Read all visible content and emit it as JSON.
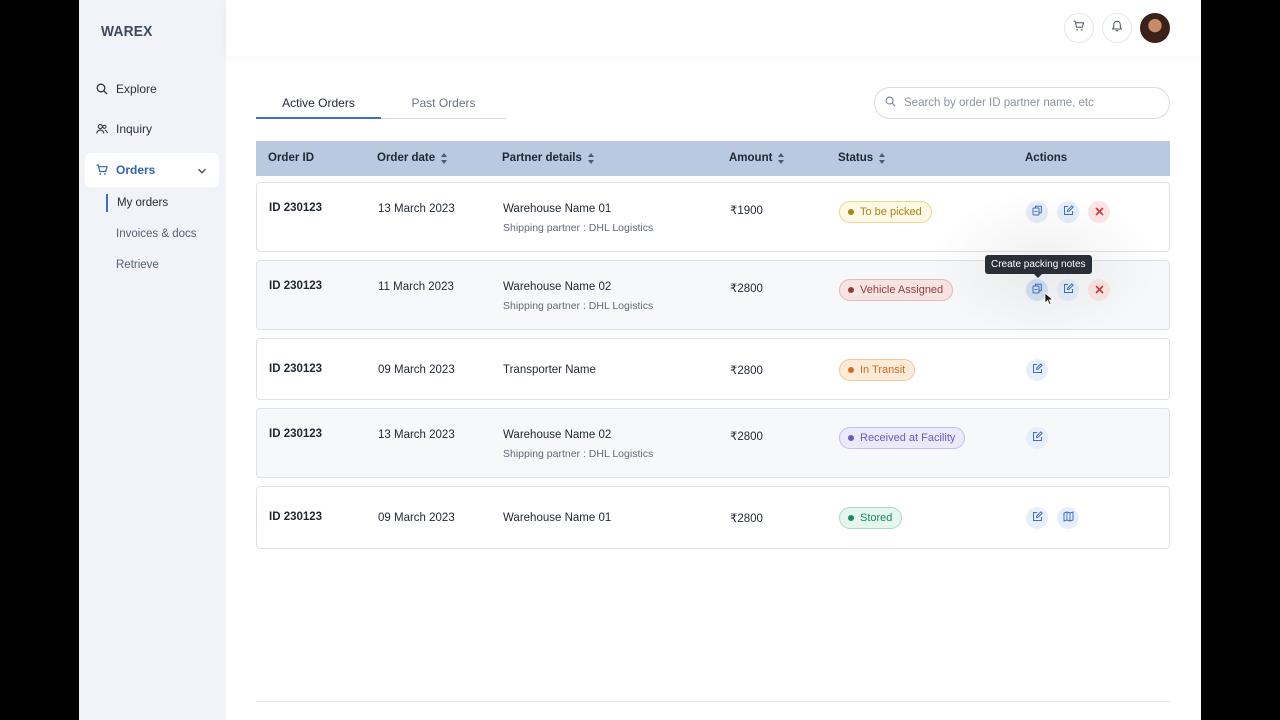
{
  "app": {
    "logo": "WAREX"
  },
  "sidebar": {
    "items": [
      {
        "label": "Explore",
        "icon": "search-icon"
      },
      {
        "label": "Inquiry",
        "icon": "users-icon"
      },
      {
        "label": "Orders",
        "icon": "cart-icon",
        "active": true
      }
    ],
    "subitems": [
      {
        "label": "My orders",
        "active": true
      },
      {
        "label": "Invoices & docs"
      },
      {
        "label": "Retrieve"
      }
    ]
  },
  "header": {
    "icons": [
      "cart-icon",
      "bell-icon",
      "avatar"
    ]
  },
  "tabs": [
    {
      "label": "Active Orders",
      "active": true
    },
    {
      "label": "Past Orders"
    }
  ],
  "search": {
    "placeholder": "Search by order ID partner name, etc"
  },
  "table": {
    "columns": [
      "Order ID",
      "Order date",
      "Partner details",
      "Amount",
      "Status",
      "Actions"
    ],
    "rows": [
      {
        "id": "ID 230123",
        "date": "13 March 2023",
        "partner": "Warehouse Name 01",
        "shipping": "Shipping partner : DHL Logistics",
        "amount": "₹1900",
        "status": "To be picked",
        "status_color": "#a88416",
        "actions": [
          "packing-notes-icon",
          "edit-icon",
          "cancel-icon"
        ]
      },
      {
        "id": "ID 230123",
        "date": "11 March 2023",
        "partner": "Warehouse Name 02",
        "shipping": "Shipping partner : DHL Logistics",
        "amount": "₹2800",
        "status": "Vehicle Assigned",
        "status_color": "#9a3b3b",
        "actions": [
          "packing-notes-icon",
          "edit-icon",
          "cancel-icon"
        ]
      },
      {
        "id": "ID 230123",
        "date": "09 March 2023",
        "partner": "Transporter Name",
        "shipping": "",
        "amount": "₹2800",
        "status": "In Transit",
        "status_color": "#d46a1a",
        "actions": [
          "edit-icon"
        ]
      },
      {
        "id": "ID 230123",
        "date": "13 March 2023",
        "partner": "Warehouse Name 02",
        "shipping": "Shipping partner : DHL Logistics",
        "amount": "₹2800",
        "status": "Received at Facility",
        "status_color": "#6a5bbd",
        "actions": [
          "edit-icon"
        ]
      },
      {
        "id": "ID 230123",
        "date": "09 March 2023",
        "partner": "Warehouse Name 01",
        "shipping": "",
        "amount": "₹2800",
        "status": "Stored",
        "status_color": "#1c8a5c",
        "actions": [
          "edit-icon",
          "map-icon"
        ]
      }
    ]
  },
  "tooltip": {
    "text": "Create packing notes"
  },
  "colors": {
    "accent": "#3d6fc4",
    "table_header": "#b9cae0",
    "sidebar_bg": "#f1f3f8"
  }
}
